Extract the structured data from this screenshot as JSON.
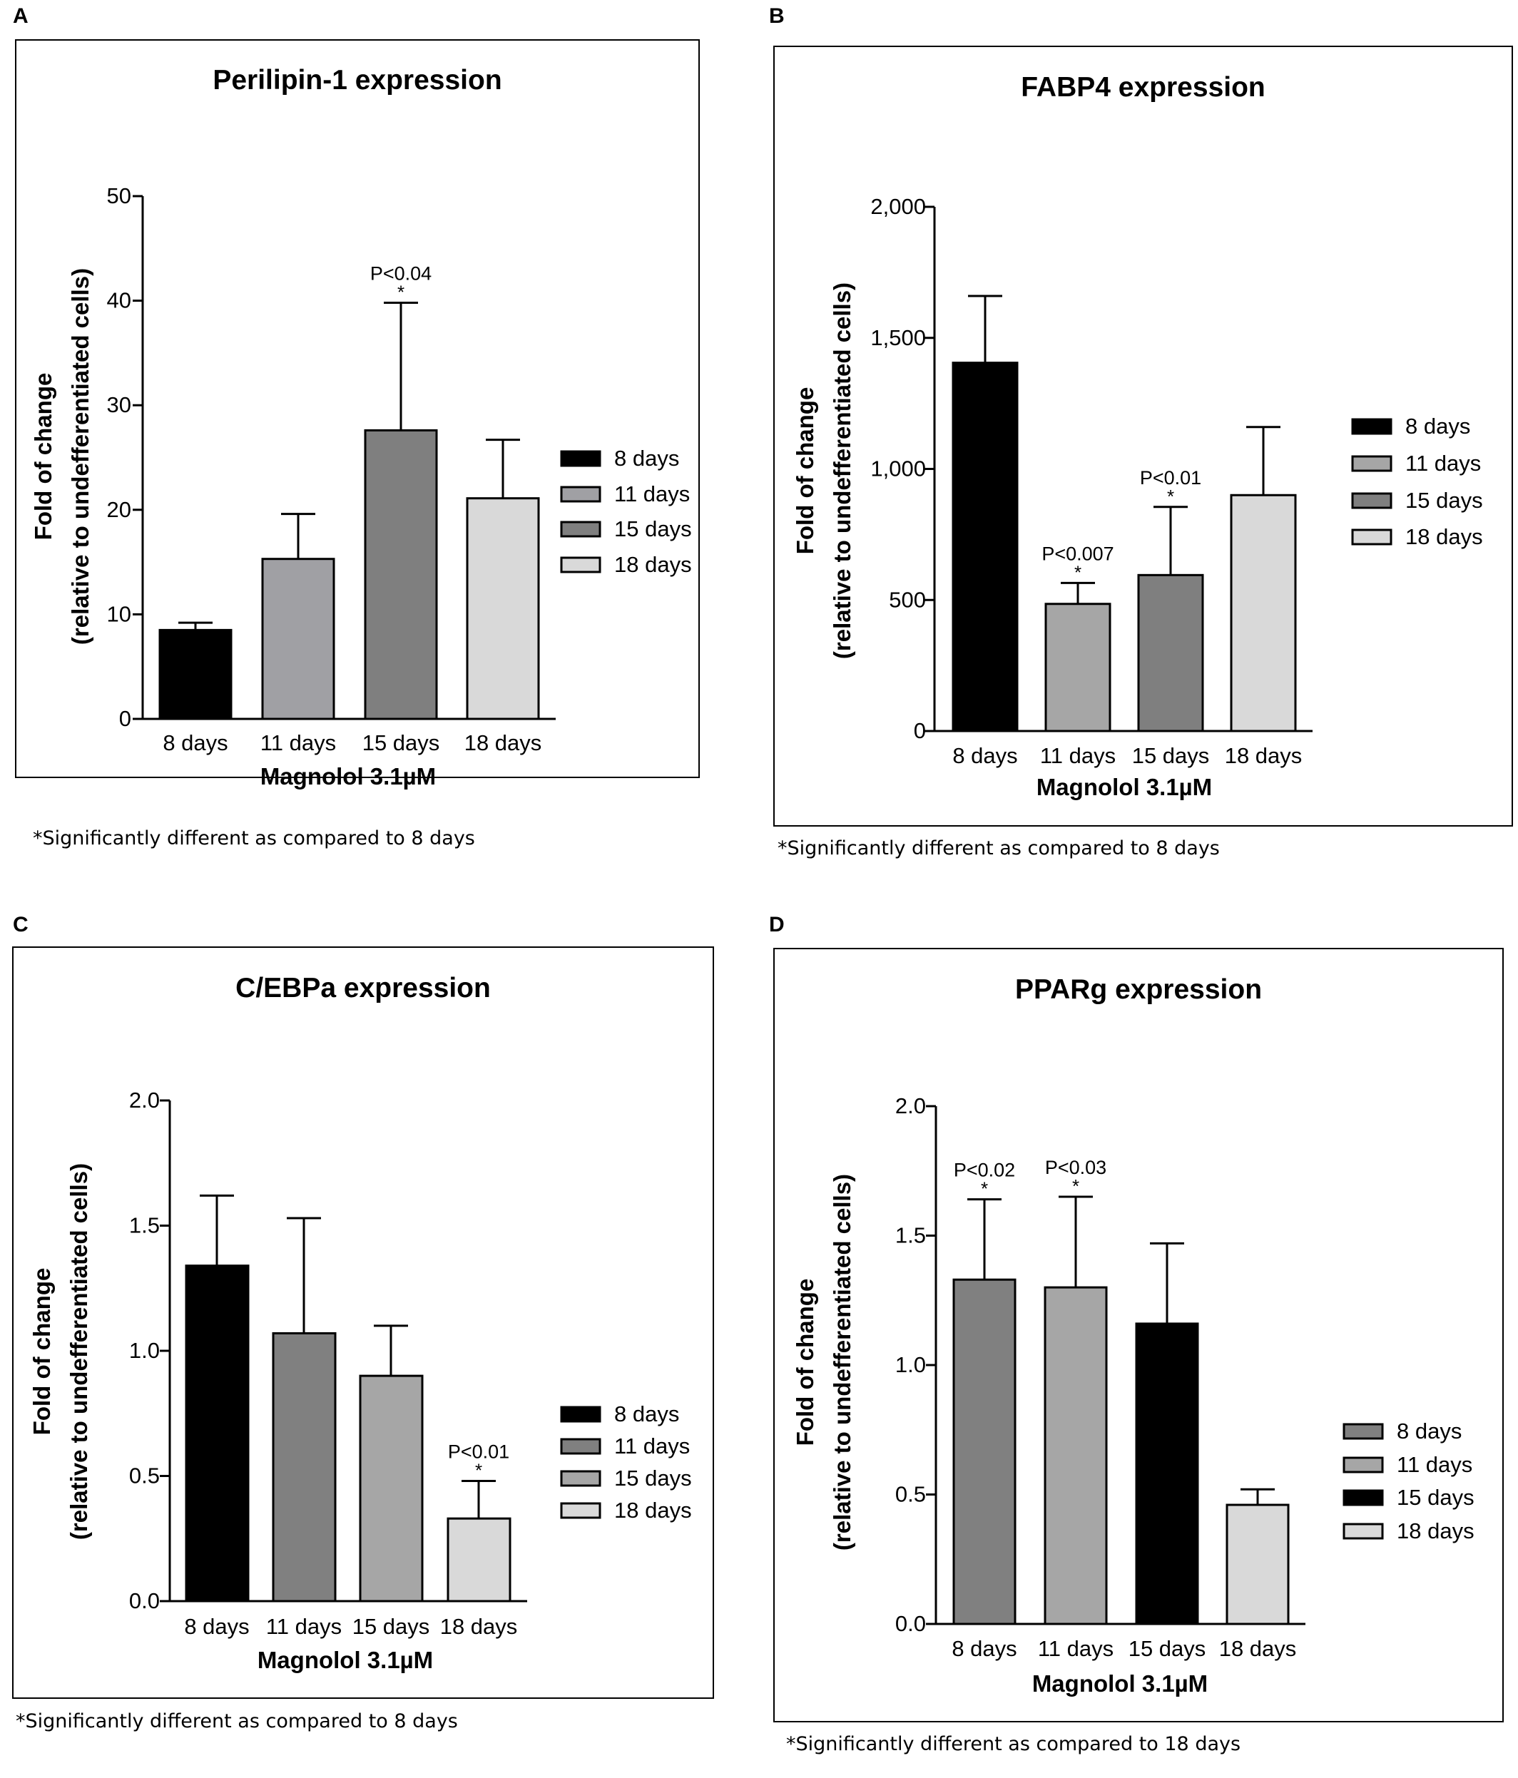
{
  "panels": [
    {
      "letter": "A",
      "footnote": "*Significantly different as compared to 8 days"
    },
    {
      "letter": "B",
      "footnote": "*Significantly different as compared to 8 days"
    },
    {
      "letter": "C",
      "footnote": "*Significantly different as compared to 8 days"
    },
    {
      "letter": "D",
      "footnote": "*Significantly different as compared to 18 days"
    }
  ],
  "chart_data": [
    {
      "type": "bar",
      "title": "Perilipin-1 expression",
      "xlabel": "Magnolol 3.1µM",
      "ylabel": "Fold of change",
      "ylabel2": "(relative to undefferentiated cells)",
      "categories": [
        "8 days",
        "11 days",
        "15 days",
        "18 days"
      ],
      "values": [
        8.5,
        15.3,
        27.6,
        21.1
      ],
      "errors": [
        0.7,
        4.3,
        12.2,
        5.6
      ],
      "colors": [
        "#000000",
        "#a0a0a4",
        "#7f7f7f",
        "#d9d9d9"
      ],
      "annotations": [
        "",
        "",
        "P<0.04",
        ""
      ],
      "stars": [
        "",
        "",
        "*",
        ""
      ],
      "ylim": [
        0,
        50
      ],
      "yticks": [
        0,
        10,
        20,
        30,
        40,
        50
      ],
      "ytick_labels": [
        "0",
        "10",
        "20",
        "30",
        "40",
        "50"
      ],
      "legend": [
        "8 days",
        "11 days",
        "15 days",
        "18 days"
      ],
      "legend_position": "right",
      "grid": false
    },
    {
      "type": "bar",
      "title": "FABP4 expression",
      "xlabel": "Magnolol 3.1µM",
      "ylabel": "Fold of change",
      "ylabel2": "(relative to undefferentiated cells)",
      "categories": [
        "8 days",
        "11 days",
        "15 days",
        "18 days"
      ],
      "values": [
        1405,
        485,
        595,
        900
      ],
      "errors": [
        255,
        80,
        260,
        260
      ],
      "colors": [
        "#000000",
        "#a6a6a6",
        "#7f7f7f",
        "#d9d9d9"
      ],
      "annotations": [
        "",
        "P<0.007",
        "P<0.01",
        ""
      ],
      "stars": [
        "",
        "*",
        "*",
        ""
      ],
      "ylim": [
        0,
        2000
      ],
      "yticks": [
        0,
        500,
        1000,
        1500,
        2000
      ],
      "ytick_labels": [
        "0",
        "500",
        "1,000",
        "1,500",
        "2,000"
      ],
      "legend": [
        "8 days",
        "11 days",
        "15 days",
        "18 days"
      ],
      "legend_position": "right",
      "grid": false
    },
    {
      "type": "bar",
      "title": "C/EBPa expression",
      "xlabel": "Magnolol 3.1µM",
      "ylabel": "Fold of change",
      "ylabel2": "(relative to undefferentiated cells)",
      "categories": [
        "8 days",
        "11 days",
        "15 days",
        "18 days"
      ],
      "values": [
        1.34,
        1.07,
        0.9,
        0.33
      ],
      "errors": [
        0.28,
        0.46,
        0.2,
        0.15
      ],
      "colors": [
        "#000000",
        "#808080",
        "#a6a6a6",
        "#d9d9d9"
      ],
      "annotations": [
        "",
        "",
        "",
        "P<0.01"
      ],
      "stars": [
        "",
        "",
        "",
        "*"
      ],
      "ylim": [
        0,
        2.0
      ],
      "yticks": [
        0,
        0.5,
        1.0,
        1.5,
        2.0
      ],
      "ytick_labels": [
        "0.0",
        "0.5",
        "1.0",
        "1.5",
        "2.0"
      ],
      "legend": [
        "8 days",
        "11 days",
        "15 days",
        "18 days"
      ],
      "legend_position": "right",
      "grid": false
    },
    {
      "type": "bar",
      "title": "PPARg expression",
      "xlabel": "Magnolol 3.1µM",
      "ylabel": "Fold of change",
      "ylabel2": "(relative to undefferentiated cells)",
      "categories": [
        "8 days",
        "11 days",
        "15 days",
        "18 days"
      ],
      "values": [
        1.33,
        1.3,
        1.16,
        0.46
      ],
      "errors": [
        0.31,
        0.35,
        0.31,
        0.06
      ],
      "colors": [
        "#808080",
        "#a6a6a6",
        "#000000",
        "#d9d9d9"
      ],
      "annotations": [
        "P<0.02",
        "P<0.03",
        "",
        ""
      ],
      "stars": [
        "*",
        "*",
        "",
        ""
      ],
      "ylim": [
        0,
        2.0
      ],
      "yticks": [
        0,
        0.5,
        1.0,
        1.5,
        2.0
      ],
      "ytick_labels": [
        "0.0",
        "0.5",
        "1.0",
        "1.5",
        "2.0"
      ],
      "legend": [
        "8 days",
        "11 days",
        "15 days",
        "18 days"
      ],
      "legend_position": "right",
      "grid": false
    }
  ]
}
